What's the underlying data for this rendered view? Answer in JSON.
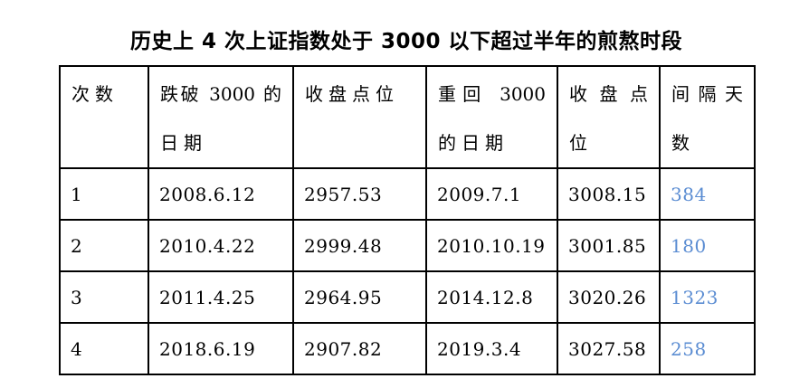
{
  "title": "历史上 4 次上证指数处于 3000 以下超过半年的煎熬时段",
  "table": {
    "border_color": "#000000",
    "interval_color": "#5a8cd2",
    "headers": [
      {
        "label": "次数",
        "lines": [
          "次数"
        ]
      },
      {
        "label": "跌破 3000 的日期",
        "lines": [
          "跌破 3000 的",
          "日期"
        ]
      },
      {
        "label": "收盘点位",
        "lines": [
          "收盘点位"
        ]
      },
      {
        "label": "重回 3000 的日期",
        "lines": [
          "重回 3000",
          "的日期"
        ]
      },
      {
        "label": "收盘点位",
        "lines": [
          "收盘点",
          "位"
        ]
      },
      {
        "label": "间隔天数",
        "lines": [
          "间隔天",
          "数"
        ]
      }
    ],
    "rows": [
      [
        "1",
        "2008.6.12",
        "2957.53",
        "2009.7.1",
        "3008.15",
        "384"
      ],
      [
        "2",
        "2010.4.22",
        "2999.48",
        "2010.10.19",
        "3001.85",
        "180"
      ],
      [
        "3",
        "2011.4.25",
        "2964.95",
        "2014.12.8",
        "3020.26",
        "1323"
      ],
      [
        "4",
        "2018.6.19",
        "2907.82",
        "2019.3.4",
        "3027.58",
        "258"
      ]
    ]
  }
}
